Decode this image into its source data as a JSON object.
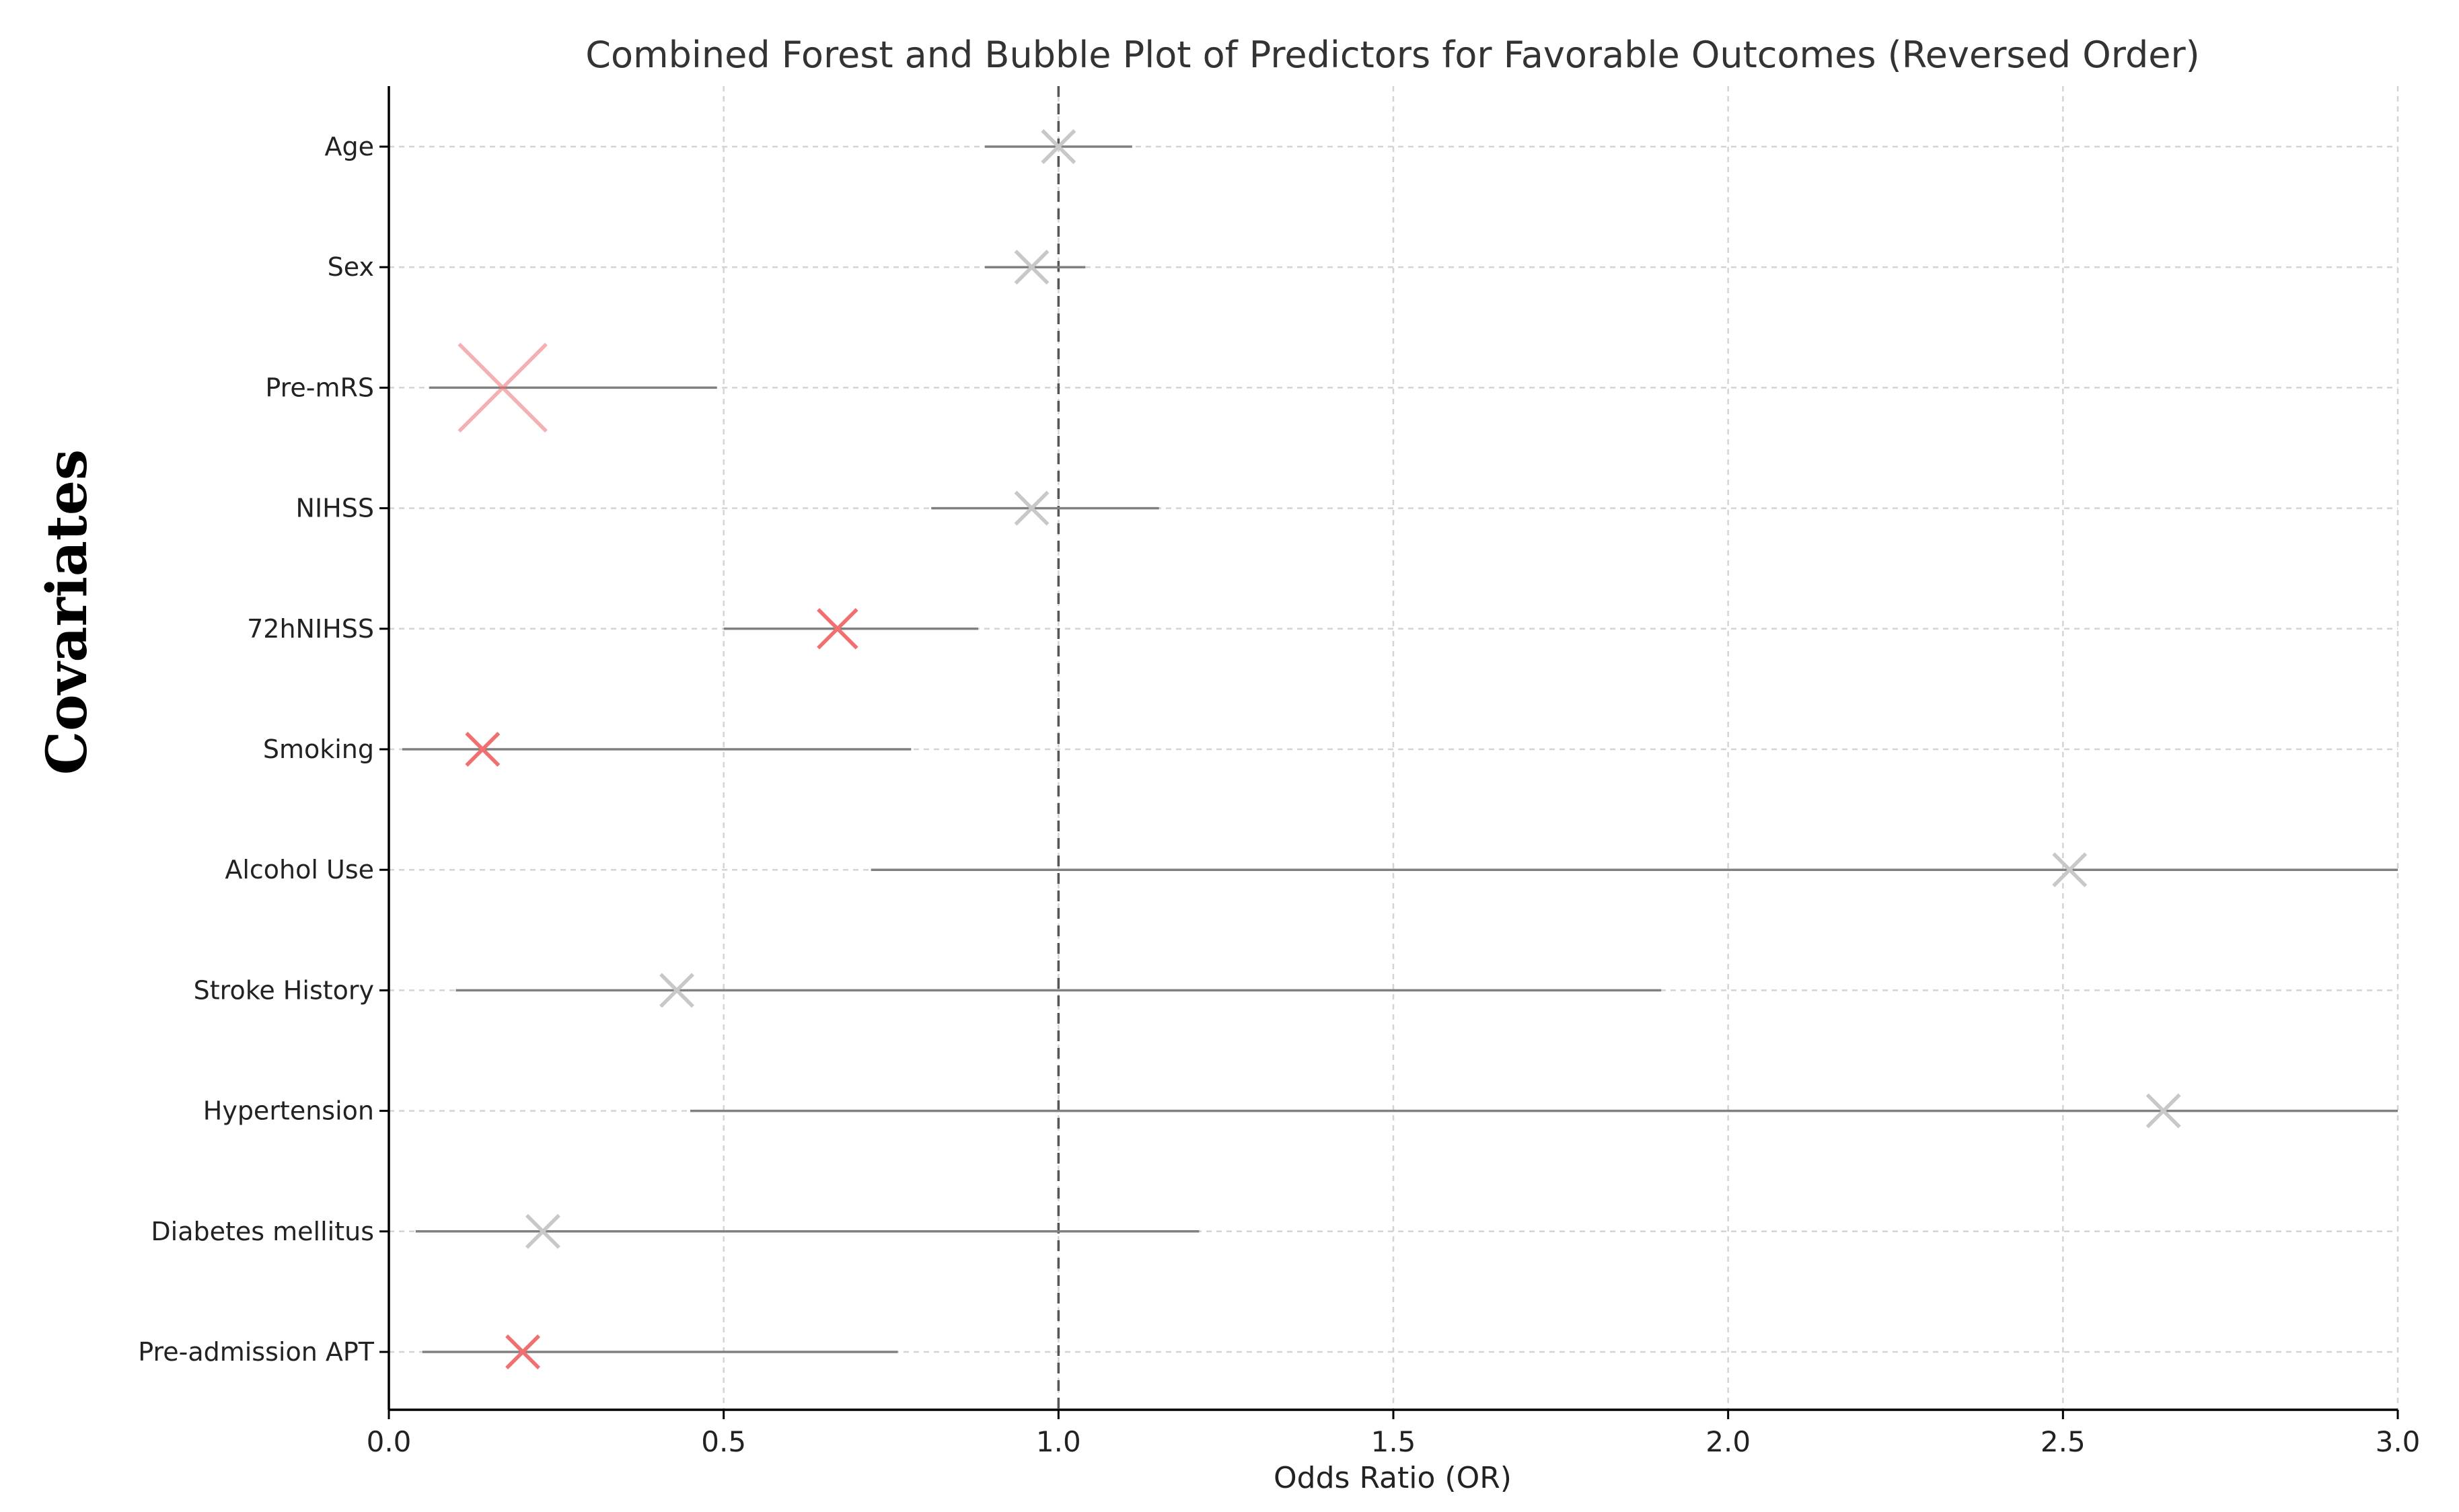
{
  "chart_data": {
    "type": "scatter",
    "title": "Combined Forest and Bubble Plot of Predictors for Favorable Outcomes (Reversed Order)",
    "xlabel": "Odds Ratio (OR)",
    "ylabel": "Covariates",
    "xlim": [
      0.0,
      3.0
    ],
    "x_ticks": [
      "0.0",
      "0.5",
      "1.0",
      "1.5",
      "2.0",
      "2.5",
      "3.0"
    ],
    "reference_line": 1.0,
    "grid": true,
    "colors": {
      "significant": "#f07070",
      "not_significant": "#c8c8c8",
      "ci_line": "#808080",
      "reference": "#555555",
      "grid": "#d4d4d4"
    },
    "covariates": [
      {
        "name": "Age",
        "or": 1.0,
        "ci_low": 0.89,
        "ci_high": 1.11,
        "significant": false,
        "bubble": 1.0
      },
      {
        "name": "Sex",
        "or": 0.96,
        "ci_low": 0.89,
        "ci_high": 1.04,
        "significant": false,
        "bubble": 1.0
      },
      {
        "name": "Pre-mRS",
        "or": 0.17,
        "ci_low": 0.06,
        "ci_high": 0.49,
        "significant": true,
        "bubble": 2.7
      },
      {
        "name": "NIHSS",
        "or": 0.96,
        "ci_low": 0.81,
        "ci_high": 1.15,
        "significant": false,
        "bubble": 1.0
      },
      {
        "name": "72hNIHSS",
        "or": 0.67,
        "ci_low": 0.5,
        "ci_high": 0.88,
        "significant": true,
        "bubble": 1.2
      },
      {
        "name": "Smoking",
        "or": 0.14,
        "ci_low": 0.02,
        "ci_high": 0.78,
        "significant": true,
        "bubble": 1.0
      },
      {
        "name": "Alcohol Use",
        "or": 2.51,
        "ci_low": 0.72,
        "ci_high": 3.0,
        "significant": false,
        "bubble": 1.0
      },
      {
        "name": "Stroke History",
        "or": 0.43,
        "ci_low": 0.1,
        "ci_high": 1.9,
        "significant": false,
        "bubble": 1.0
      },
      {
        "name": "Hypertension",
        "or": 2.65,
        "ci_low": 0.45,
        "ci_high": 3.0,
        "significant": false,
        "bubble": 1.0
      },
      {
        "name": "Diabetes mellitus",
        "or": 0.23,
        "ci_low": 0.04,
        "ci_high": 1.21,
        "significant": false,
        "bubble": 1.0
      },
      {
        "name": "Pre-admission APT",
        "or": 0.2,
        "ci_low": 0.05,
        "ci_high": 0.76,
        "significant": true,
        "bubble": 1.0
      }
    ]
  }
}
